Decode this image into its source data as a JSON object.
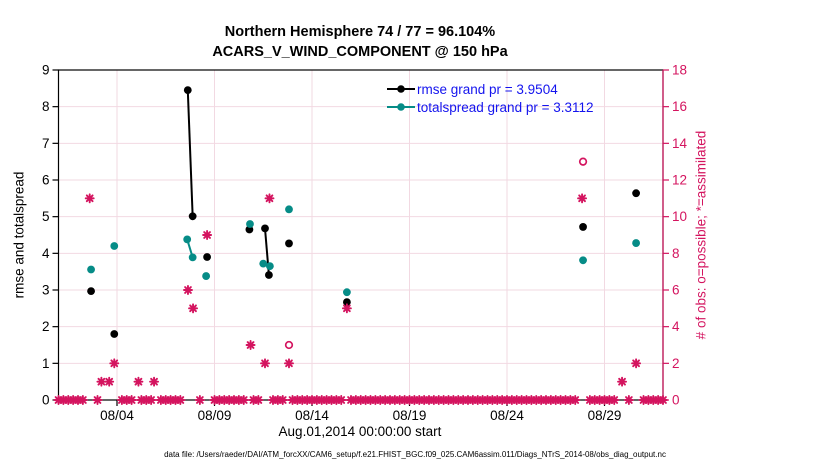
{
  "title": {
    "line1": "Northern Hemisphere 74 / 77 = 96.104%",
    "line2": "ACARS_V_WIND_COMPONENT @ 150 hPa"
  },
  "legend": {
    "text_color": "#1414EE",
    "items": [
      {
        "label": "rmse grand pr = 3.9504",
        "color": "#000000"
      },
      {
        "label": "totalspread grand pr = 3.3112",
        "color": "#068C87"
      }
    ]
  },
  "footer": {
    "text": "data file: /Users/raeder/DAI/ATM_forcXX/CAM6_setup/f.e21.FHIST_BGC.f09_025.CAM6assim.011/Diags_NTrS_2014-08/obs_diag_output.nc"
  },
  "colors": {
    "obs": "#D4145F",
    "grid": "#F2D9E2",
    "axis": "#000000",
    "rmse": "#000000",
    "totalspread": "#068C87"
  },
  "chart_data": {
    "type": "scatter",
    "title": "Northern Hemisphere 74 / 77 = 96.104% — ACARS_V_WIND_COMPONENT @ 150 hPa",
    "x_axis": {
      "label": "Aug.01,2014 00:00:00 start",
      "min_day": 0,
      "max_day": 31,
      "ticks": [
        {
          "day": 3,
          "label": "08/04"
        },
        {
          "day": 8,
          "label": "08/09"
        },
        {
          "day": 13,
          "label": "08/14"
        },
        {
          "day": 18,
          "label": "08/19"
        },
        {
          "day": 23,
          "label": "08/24"
        },
        {
          "day": 28,
          "label": "08/29"
        }
      ]
    },
    "y_left": {
      "label": "rmse and totalspread",
      "min": 0,
      "max": 9,
      "ticks": [
        0,
        1,
        2,
        3,
        4,
        5,
        6,
        7,
        8,
        9
      ]
    },
    "y_right": {
      "label": "# of obs: o=possible; *=assimilated",
      "min": 0,
      "max": 18,
      "ticks": [
        0,
        2,
        4,
        6,
        8,
        10,
        12,
        14,
        16,
        18
      ]
    },
    "grid": true,
    "legend_position": "top-right-inside",
    "series": [
      {
        "name": "rmse",
        "axis": "left",
        "marker": "dot",
        "color": "#000000",
        "grand_pr": 3.9504,
        "points": [
          [
            1.67,
            2.97
          ],
          [
            2.86,
            1.8
          ],
          [
            6.63,
            8.45
          ],
          [
            6.88,
            5.01
          ],
          [
            7.62,
            3.9
          ],
          [
            9.79,
            4.65
          ],
          [
            10.59,
            4.68
          ],
          [
            10.79,
            3.41
          ],
          [
            11.82,
            4.27
          ],
          [
            14.79,
            2.67
          ],
          [
            26.9,
            4.72
          ],
          [
            29.62,
            5.64
          ]
        ],
        "lines": [
          [
            [
              6.63,
              8.45
            ],
            [
              6.88,
              5.01
            ]
          ],
          [
            [
              10.59,
              4.68
            ],
            [
              10.79,
              3.41
            ]
          ]
        ]
      },
      {
        "name": "totalspread",
        "axis": "left",
        "marker": "dot",
        "color": "#068C87",
        "grand_pr": 3.3112,
        "points": [
          [
            1.67,
            3.56
          ],
          [
            2.86,
            4.2
          ],
          [
            6.6,
            4.38
          ],
          [
            6.88,
            3.89
          ],
          [
            7.57,
            3.38
          ],
          [
            9.82,
            4.8
          ],
          [
            10.5,
            3.72
          ],
          [
            10.84,
            3.65
          ],
          [
            11.82,
            5.2
          ],
          [
            14.79,
            2.94
          ],
          [
            26.9,
            3.81
          ],
          [
            29.62,
            4.28
          ]
        ],
        "lines": [
          [
            [
              6.6,
              4.38
            ],
            [
              6.88,
              3.89
            ]
          ],
          [
            [
              10.5,
              3.72
            ],
            [
              10.84,
              3.65
            ]
          ]
        ]
      },
      {
        "name": "assimilated-obs",
        "axis": "right",
        "marker": "star",
        "color": "#D4145F",
        "points": [
          [
            1.6,
            11
          ],
          [
            2.2,
            1
          ],
          [
            2.6,
            1
          ],
          [
            2.86,
            2
          ],
          [
            4.1,
            1
          ],
          [
            4.9,
            1
          ],
          [
            6.64,
            6
          ],
          [
            6.9,
            5
          ],
          [
            7.62,
            9
          ],
          [
            9.85,
            3
          ],
          [
            10.59,
            2
          ],
          [
            10.82,
            11
          ],
          [
            11.82,
            2
          ],
          [
            14.79,
            5
          ],
          [
            26.85,
            11
          ],
          [
            28.9,
            1
          ],
          [
            29.62,
            2
          ]
        ]
      },
      {
        "name": "possible-obs",
        "axis": "right",
        "marker": "ring",
        "color": "#D4145F",
        "points": [
          [
            11.82,
            3
          ],
          [
            26.9,
            13
          ]
        ]
      }
    ],
    "zero_obs_row": {
      "axis": "right",
      "value": 0,
      "marker": "star",
      "color": "#D4145F",
      "start_day": 0,
      "end_day": 31,
      "step_day": 0.25,
      "gap_days": [
        1.6,
        2.2,
        2.6,
        2.86,
        4.1,
        4.9,
        6.64,
        6.9,
        7.62,
        9.85,
        10.59,
        10.82,
        11.82,
        14.79,
        26.85,
        28.9,
        29.62
      ]
    }
  }
}
